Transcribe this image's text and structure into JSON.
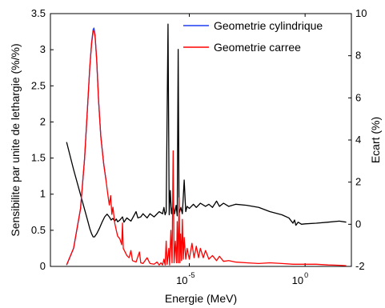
{
  "chart_data": {
    "type": "line",
    "xlabel": "Energie (MeV)",
    "ylabel_left": "Sensibilite par unite de lethargie (%/%)",
    "ylabel_right": "Ecart (%)",
    "xscale": "log",
    "xlim": [
      1e-11,
      100
    ],
    "ylim_left": [
      0,
      3.5
    ],
    "ylim_right": [
      -2,
      10
    ],
    "yticks_left": [
      "0",
      "0.5",
      "1",
      "1.5",
      "2",
      "2.5",
      "3",
      "3.5"
    ],
    "yticks_right": [
      "-2",
      "0",
      "2",
      "4",
      "6",
      "8",
      "10"
    ],
    "xticks": [
      {
        "base": "10",
        "exp": "-5",
        "value": 1e-05
      },
      {
        "base": "10",
        "exp": "0",
        "value": 1
      }
    ],
    "legend_position": "top-right",
    "grid": false,
    "series": [
      {
        "name": "Geometrie cylindrique",
        "color": "#1f3ff0",
        "axis": "left",
        "points": [
          [
            5e-11,
            0.02
          ],
          [
            1e-10,
            0.25
          ],
          [
            2e-10,
            0.8
          ],
          [
            3e-10,
            1.5
          ],
          [
            4e-10,
            2.2
          ],
          [
            5e-10,
            2.75
          ],
          [
            6e-10,
            3.1
          ],
          [
            7e-10,
            3.28
          ],
          [
            7.6e-10,
            3.3
          ],
          [
            8.5e-10,
            3.2
          ],
          [
            1e-09,
            2.85
          ],
          [
            1.2e-09,
            2.3
          ],
          [
            1.5e-09,
            1.8
          ],
          [
            2e-09,
            1.42
          ],
          [
            2.5e-09,
            1.2
          ]
        ]
      },
      {
        "name": "Geometrie carree",
        "color": "#ff0000",
        "axis": "left",
        "points": [
          [
            5e-11,
            0.02
          ],
          [
            1e-10,
            0.25
          ],
          [
            2e-10,
            0.8
          ],
          [
            3e-10,
            1.5
          ],
          [
            4e-10,
            2.2
          ],
          [
            5e-10,
            2.75
          ],
          [
            6e-10,
            3.08
          ],
          [
            7e-10,
            3.25
          ],
          [
            7.6e-10,
            3.27
          ],
          [
            8.5e-10,
            3.18
          ],
          [
            1e-09,
            2.85
          ],
          [
            1.2e-09,
            2.3
          ],
          [
            1.5e-09,
            1.8
          ],
          [
            2e-09,
            1.42
          ],
          [
            2.5e-09,
            1.2
          ],
          [
            3e-09,
            1.0
          ],
          [
            3.5e-09,
            0.85
          ],
          [
            4e-09,
            0.98
          ],
          [
            4.5e-09,
            0.72
          ],
          [
            5e-09,
            0.82
          ],
          [
            6e-09,
            0.6
          ],
          [
            7e-09,
            0.5
          ],
          [
            8e-09,
            0.42
          ],
          [
            1e-08,
            0.38
          ],
          [
            1.2e-08,
            0.3
          ],
          [
            1.3e-08,
            0.6
          ],
          [
            1.4e-08,
            0.25
          ],
          [
            2e-08,
            0.15
          ],
          [
            2.5e-08,
            0.12
          ],
          [
            3e-08,
            0.22
          ],
          [
            3.5e-08,
            0.08
          ],
          [
            5e-08,
            0.06
          ],
          [
            7e-08,
            0.2
          ],
          [
            8e-08,
            0.05
          ],
          [
            1e-07,
            0.04
          ],
          [
            1.5e-07,
            0.12
          ],
          [
            2e-07,
            0.04
          ],
          [
            3e-07,
            0.03
          ],
          [
            4e-07,
            0.06
          ],
          [
            5e-07,
            0.02
          ],
          [
            6e-07,
            0.05
          ],
          [
            7e-07,
            0.02
          ],
          [
            8e-07,
            0.1
          ],
          [
            9e-07,
            0.02
          ],
          [
            1e-06,
            0.35
          ],
          [
            1.1e-06,
            0.03
          ],
          [
            1.3e-06,
            0.25
          ],
          [
            1.4e-06,
            0.02
          ],
          [
            1.6e-06,
            0.5
          ],
          [
            1.8e-06,
            0.05
          ],
          [
            2e-06,
            1.6
          ],
          [
            2.2e-06,
            0.05
          ],
          [
            2.5e-06,
            0.35
          ],
          [
            2.8e-06,
            0.05
          ],
          [
            3e-06,
            0.62
          ],
          [
            3.3e-06,
            0.05
          ],
          [
            3.6e-06,
            0.95
          ],
          [
            3.9e-06,
            0.05
          ],
          [
            4.2e-06,
            0.45
          ],
          [
            4.6e-06,
            0.08
          ],
          [
            5e-06,
            0.65
          ],
          [
            5.5e-06,
            0.1
          ],
          [
            6e-06,
            0.4
          ],
          [
            7e-06,
            0.1
          ],
          [
            8e-06,
            0.25
          ],
          [
            1e-05,
            0.1
          ],
          [
            1.3e-05,
            0.32
          ],
          [
            1.6e-05,
            0.12
          ],
          [
            2e-05,
            0.28
          ],
          [
            2.5e-05,
            0.12
          ],
          [
            3e-05,
            0.25
          ],
          [
            4e-05,
            0.12
          ],
          [
            5e-05,
            0.22
          ],
          [
            7e-05,
            0.1
          ],
          [
            0.0001,
            0.15
          ],
          [
            0.00015,
            0.08
          ],
          [
            0.0002,
            0.14
          ],
          [
            0.0003,
            0.07
          ],
          [
            0.0005,
            0.08
          ],
          [
            0.001,
            0.06
          ],
          [
            0.003,
            0.05
          ],
          [
            0.01,
            0.04
          ],
          [
            0.03,
            0.05
          ],
          [
            0.1,
            0.04
          ],
          [
            0.3,
            0.03
          ],
          [
            1,
            0.03
          ],
          [
            3,
            0.03
          ],
          [
            10,
            0.02
          ],
          [
            30,
            0.015
          ],
          [
            60,
            0.01
          ]
        ]
      },
      {
        "name": "",
        "color": "#000000",
        "axis": "right",
        "points": [
          [
            5e-11,
            3.9
          ],
          [
            1e-10,
            2.6
          ],
          [
            2e-10,
            1.4
          ],
          [
            3e-10,
            0.7
          ],
          [
            4e-10,
            0.2
          ],
          [
            5e-10,
            -0.2
          ],
          [
            6e-10,
            -0.45
          ],
          [
            7e-10,
            -0.6
          ],
          [
            8e-10,
            -0.6
          ],
          [
            1e-09,
            -0.45
          ],
          [
            1.3e-09,
            -0.2
          ],
          [
            1.7e-09,
            0.1
          ],
          [
            2.2e-09,
            0.35
          ],
          [
            2.8e-09,
            0.48
          ],
          [
            3.5e-09,
            0.35
          ],
          [
            4.2e-09,
            0.2
          ],
          [
            5e-09,
            0.28
          ],
          [
            6e-09,
            0.15
          ],
          [
            7e-09,
            0.25
          ],
          [
            8e-09,
            0.12
          ],
          [
            1e-08,
            0.2
          ],
          [
            1.3e-08,
            0.35
          ],
          [
            1.5e-08,
            0.1
          ],
          [
            2e-08,
            0.3
          ],
          [
            3e-08,
            0.15
          ],
          [
            5e-08,
            0.6
          ],
          [
            6e-08,
            0.3
          ],
          [
            8e-08,
            0.35
          ],
          [
            1e-07,
            0.5
          ],
          [
            1.5e-07,
            0.3
          ],
          [
            2e-07,
            0.5
          ],
          [
            3e-07,
            0.35
          ],
          [
            5e-07,
            0.6
          ],
          [
            7e-07,
            0.5
          ],
          [
            8e-07,
            0.8
          ],
          [
            9e-07,
            0.45
          ],
          [
            1e-06,
            0.6
          ],
          [
            1.2e-06,
            9.5
          ],
          [
            1.35e-06,
            0.45
          ],
          [
            1.5e-06,
            1.6
          ],
          [
            1.7e-06,
            0.5
          ],
          [
            2e-06,
            1.0
          ],
          [
            2.3e-06,
            0.5
          ],
          [
            2.7e-06,
            0.9
          ],
          [
            3e-06,
            0.4
          ],
          [
            3.3e-06,
            8.3
          ],
          [
            3.6e-06,
            0.5
          ],
          [
            4.3e-06,
            0.8
          ],
          [
            5e-06,
            0.5
          ],
          [
            6e-06,
            2.1
          ],
          [
            7e-06,
            0.6
          ],
          [
            8e-06,
            0.85
          ],
          [
            1e-05,
            0.75
          ],
          [
            1.5e-05,
            0.95
          ],
          [
            2e-05,
            0.8
          ],
          [
            3e-05,
            1.0
          ],
          [
            5e-05,
            0.85
          ],
          [
            7e-05,
            0.95
          ],
          [
            0.0001,
            0.8
          ],
          [
            0.00015,
            1.1
          ],
          [
            0.0002,
            0.85
          ],
          [
            0.0003,
            1.0
          ],
          [
            0.0005,
            0.85
          ],
          [
            0.001,
            0.95
          ],
          [
            0.003,
            0.9
          ],
          [
            0.01,
            0.8
          ],
          [
            0.03,
            0.6
          ],
          [
            0.1,
            0.45
          ],
          [
            0.2,
            0.3
          ],
          [
            0.3,
            0.05
          ],
          [
            0.35,
            0.2
          ],
          [
            0.4,
            -0.05
          ],
          [
            0.5,
            0.1
          ],
          [
            0.7,
            0.0
          ],
          [
            1,
            0.02
          ],
          [
            3,
            0.05
          ],
          [
            10,
            0.1
          ],
          [
            30,
            0.15
          ],
          [
            60,
            0.1
          ]
        ]
      }
    ]
  }
}
